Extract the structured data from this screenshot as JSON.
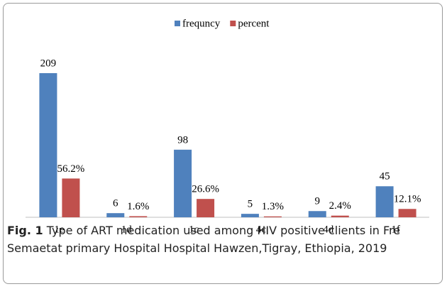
{
  "chart_data": {
    "type": "bar",
    "categories": [
      "1e",
      "1d",
      "1c",
      "4c",
      "4d",
      "1f"
    ],
    "series": [
      {
        "name": "frequncy",
        "color": "#4f81bd",
        "values": [
          209,
          6,
          98,
          5,
          9,
          45
        ]
      },
      {
        "name": "percent",
        "color": "#c0504d",
        "values": [
          56.2,
          1.6,
          26.6,
          1.3,
          2.4,
          12.1
        ],
        "value_labels": [
          "56.2%",
          "1.6%",
          "26.6%",
          "1.3%",
          "2.4%",
          "12.1%"
        ]
      }
    ],
    "legend": "top"
  },
  "caption": {
    "label": "Fig. 1",
    "text": "Type of ART medication used among HIV positive clients in Fre Semaetat primary Hospital Hospital Hawzen,Tigray, Ethiopia, 2019"
  }
}
